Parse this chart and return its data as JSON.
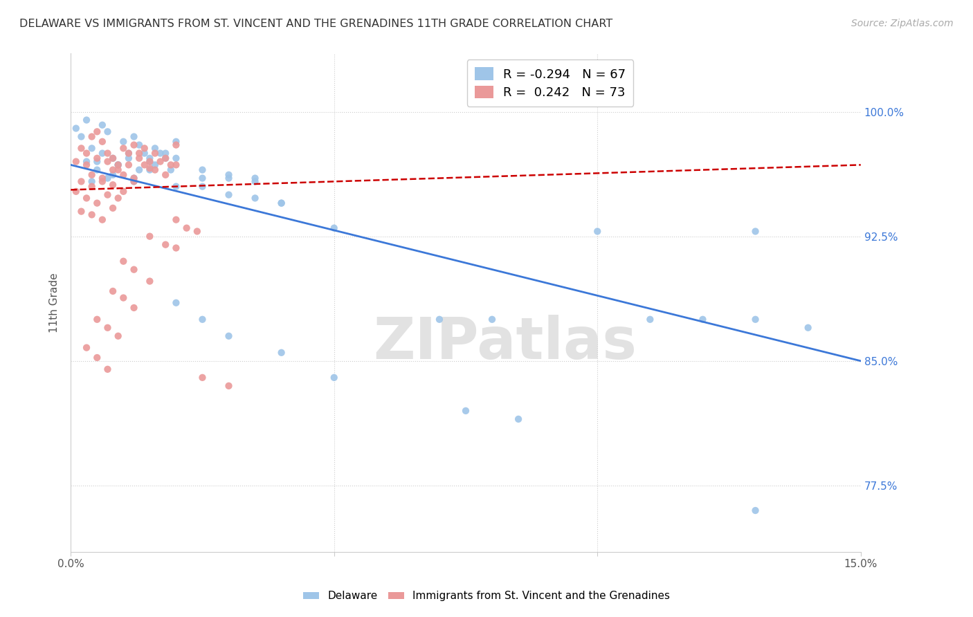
{
  "title": "DELAWARE VS IMMIGRANTS FROM ST. VINCENT AND THE GRENADINES 11TH GRADE CORRELATION CHART",
  "source": "Source: ZipAtlas.com",
  "ylabel": "11th Grade",
  "ylabel_right_ticks": [
    "77.5%",
    "85.0%",
    "92.5%",
    "100.0%"
  ],
  "ylabel_right_values": [
    0.775,
    0.85,
    0.925,
    1.0
  ],
  "legend_blue_r": -0.294,
  "legend_blue_n": 67,
  "legend_pink_r": 0.242,
  "legend_pink_n": 73,
  "blue_color": "#9fc5e8",
  "pink_color": "#ea9999",
  "blue_line_color": "#3c78d8",
  "pink_line_color": "#cc0000",
  "xlim": [
    0.0,
    0.15
  ],
  "ylim": [
    0.735,
    1.035
  ],
  "blue_scatter_x": [
    0.001,
    0.002,
    0.003,
    0.004,
    0.005,
    0.006,
    0.007,
    0.008,
    0.009,
    0.01,
    0.011,
    0.012,
    0.013,
    0.014,
    0.015,
    0.016,
    0.018,
    0.02,
    0.005,
    0.007,
    0.009,
    0.011,
    0.013,
    0.015,
    0.017,
    0.019,
    0.003,
    0.006,
    0.009,
    0.012,
    0.015,
    0.018,
    0.004,
    0.008,
    0.012,
    0.016,
    0.02,
    0.025,
    0.03,
    0.035,
    0.02,
    0.025,
    0.03,
    0.035,
    0.04,
    0.025,
    0.03,
    0.035,
    0.04,
    0.05,
    0.1,
    0.13,
    0.02,
    0.025,
    0.03,
    0.04,
    0.05,
    0.07,
    0.08,
    0.13,
    0.14,
    0.11,
    0.12,
    0.075,
    0.085,
    0.13
  ],
  "blue_scatter_y": [
    0.99,
    0.985,
    0.995,
    0.978,
    0.97,
    0.992,
    0.988,
    0.972,
    0.968,
    0.982,
    0.975,
    0.985,
    0.98,
    0.975,
    0.972,
    0.978,
    0.975,
    0.982,
    0.965,
    0.96,
    0.968,
    0.972,
    0.965,
    0.97,
    0.975,
    0.965,
    0.97,
    0.975,
    0.968,
    0.96,
    0.965,
    0.972,
    0.958,
    0.962,
    0.958,
    0.968,
    0.972,
    0.96,
    0.96,
    0.958,
    0.955,
    0.955,
    0.95,
    0.948,
    0.945,
    0.965,
    0.962,
    0.96,
    0.945,
    0.93,
    0.928,
    0.928,
    0.885,
    0.875,
    0.865,
    0.855,
    0.84,
    0.875,
    0.875,
    0.875,
    0.87,
    0.875,
    0.875,
    0.82,
    0.815,
    0.76
  ],
  "pink_scatter_x": [
    0.001,
    0.002,
    0.003,
    0.004,
    0.005,
    0.006,
    0.007,
    0.008,
    0.009,
    0.01,
    0.011,
    0.012,
    0.013,
    0.014,
    0.015,
    0.016,
    0.018,
    0.02,
    0.003,
    0.005,
    0.007,
    0.009,
    0.011,
    0.013,
    0.015,
    0.017,
    0.019,
    0.004,
    0.006,
    0.008,
    0.01,
    0.012,
    0.014,
    0.016,
    0.018,
    0.02,
    0.002,
    0.004,
    0.006,
    0.008,
    0.01,
    0.012,
    0.001,
    0.003,
    0.005,
    0.007,
    0.009,
    0.002,
    0.004,
    0.006,
    0.008,
    0.02,
    0.022,
    0.024,
    0.015,
    0.018,
    0.02,
    0.01,
    0.012,
    0.015,
    0.008,
    0.01,
    0.012,
    0.005,
    0.007,
    0.009,
    0.003,
    0.005,
    0.007,
    0.025,
    0.03
  ],
  "pink_scatter_y": [
    0.97,
    0.978,
    0.975,
    0.985,
    0.988,
    0.982,
    0.975,
    0.972,
    0.968,
    0.978,
    0.975,
    0.98,
    0.975,
    0.978,
    0.97,
    0.975,
    0.972,
    0.98,
    0.968,
    0.972,
    0.97,
    0.965,
    0.968,
    0.972,
    0.966,
    0.97,
    0.968,
    0.962,
    0.958,
    0.965,
    0.962,
    0.96,
    0.968,
    0.965,
    0.962,
    0.968,
    0.958,
    0.955,
    0.96,
    0.956,
    0.952,
    0.958,
    0.952,
    0.948,
    0.945,
    0.95,
    0.948,
    0.94,
    0.938,
    0.935,
    0.942,
    0.935,
    0.93,
    0.928,
    0.925,
    0.92,
    0.918,
    0.91,
    0.905,
    0.898,
    0.892,
    0.888,
    0.882,
    0.875,
    0.87,
    0.865,
    0.858,
    0.852,
    0.845,
    0.84,
    0.835
  ]
}
